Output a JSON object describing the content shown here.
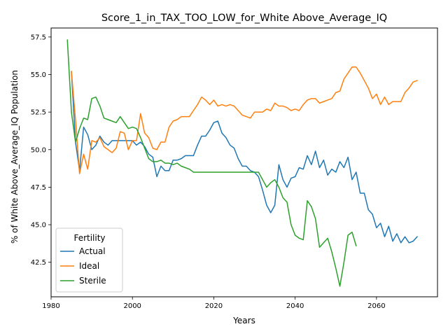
{
  "chart_data": {
    "type": "line",
    "title": "Score_1_in_TAX_TOO_LOW_for_White Above_Average_IQ",
    "xlabel": "Years",
    "ylabel": "% of White Above_Average_IQ Population",
    "xlim": [
      1980,
      2075
    ],
    "ylim": [
      40.2,
      58.1
    ],
    "x_ticks": [
      1980,
      2000,
      2020,
      2040,
      2060
    ],
    "y_ticks": [
      42.5,
      45.0,
      47.5,
      50.0,
      52.5,
      55.0,
      57.5
    ],
    "x_tick_labels": [
      "1980",
      "2000",
      "2020",
      "2040",
      "2060"
    ],
    "y_tick_labels": [
      "42.5",
      "45.0",
      "47.5",
      "50.0",
      "52.5",
      "55.0",
      "57.5"
    ],
    "grid": false,
    "legend": {
      "title": "Fertility",
      "placement": "lower-left",
      "entries": [
        "Actual",
        "Ideal",
        "Sterile"
      ]
    },
    "series": [
      {
        "name": "Actual",
        "color": "#1f77b4",
        "points": [
          [
            1985,
            55.2
          ],
          [
            1986,
            50.5
          ],
          [
            1987,
            48.6
          ],
          [
            1988,
            51.5
          ],
          [
            1989,
            51.0
          ],
          [
            1990,
            50.0
          ],
          [
            1991,
            50.3
          ],
          [
            1992,
            50.9
          ],
          [
            1993,
            50.5
          ],
          [
            1994,
            50.3
          ],
          [
            1995,
            50.6
          ],
          [
            1996,
            50.6
          ],
          [
            1997,
            50.6
          ],
          [
            1998,
            50.6
          ],
          [
            1999,
            50.6
          ],
          [
            2000,
            50.6
          ],
          [
            2001,
            50.3
          ],
          [
            2002,
            50.5
          ],
          [
            2003,
            50.2
          ],
          [
            2004,
            49.7
          ],
          [
            2005,
            49.5
          ],
          [
            2006,
            48.2
          ],
          [
            2007,
            48.9
          ],
          [
            2008,
            48.6
          ],
          [
            2009,
            48.6
          ],
          [
            2010,
            49.3
          ],
          [
            2011,
            49.3
          ],
          [
            2012,
            49.4
          ],
          [
            2013,
            49.6
          ],
          [
            2014,
            49.6
          ],
          [
            2015,
            49.6
          ],
          [
            2016,
            50.3
          ],
          [
            2017,
            50.9
          ],
          [
            2018,
            50.9
          ],
          [
            2019,
            51.3
          ],
          [
            2020,
            51.8
          ],
          [
            2021,
            51.9
          ],
          [
            2022,
            51.1
          ],
          [
            2023,
            50.8
          ],
          [
            2024,
            50.3
          ],
          [
            2025,
            50.1
          ],
          [
            2026,
            49.4
          ],
          [
            2027,
            48.9
          ],
          [
            2028,
            48.9
          ],
          [
            2029,
            48.6
          ],
          [
            2030,
            48.5
          ],
          [
            2031,
            48.2
          ],
          [
            2032,
            47.3
          ],
          [
            2033,
            46.3
          ],
          [
            2034,
            45.8
          ],
          [
            2035,
            46.3
          ],
          [
            2036,
            49.0
          ],
          [
            2037,
            48.0
          ],
          [
            2038,
            47.5
          ],
          [
            2039,
            48.1
          ],
          [
            2040,
            48.2
          ],
          [
            2041,
            48.8
          ],
          [
            2042,
            48.7
          ],
          [
            2043,
            49.6
          ],
          [
            2044,
            49.0
          ],
          [
            2045,
            49.9
          ],
          [
            2046,
            48.8
          ],
          [
            2047,
            49.3
          ],
          [
            2048,
            48.3
          ],
          [
            2049,
            48.7
          ],
          [
            2050,
            48.5
          ],
          [
            2051,
            49.2
          ],
          [
            2052,
            48.8
          ],
          [
            2053,
            49.5
          ],
          [
            2054,
            48.0
          ],
          [
            2055,
            48.5
          ],
          [
            2056,
            47.1
          ],
          [
            2057,
            47.1
          ],
          [
            2058,
            46.0
          ],
          [
            2059,
            45.7
          ],
          [
            2060,
            44.8
          ],
          [
            2061,
            45.1
          ],
          [
            2062,
            44.2
          ],
          [
            2063,
            44.9
          ],
          [
            2064,
            43.9
          ],
          [
            2065,
            44.4
          ],
          [
            2066,
            43.8
          ],
          [
            2067,
            44.2
          ],
          [
            2068,
            43.8
          ],
          [
            2069,
            43.9
          ],
          [
            2070,
            44.2
          ]
        ]
      },
      {
        "name": "Ideal",
        "color": "#ff7f0e",
        "points": [
          [
            1985,
            55.2
          ],
          [
            1986,
            52.0
          ],
          [
            1987,
            48.4
          ],
          [
            1988,
            49.7
          ],
          [
            1989,
            48.7
          ],
          [
            1990,
            50.6
          ],
          [
            1991,
            50.5
          ],
          [
            1992,
            50.8
          ],
          [
            1993,
            50.2
          ],
          [
            1994,
            50.0
          ],
          [
            1995,
            49.8
          ],
          [
            1996,
            50.1
          ],
          [
            1997,
            51.2
          ],
          [
            1998,
            51.1
          ],
          [
            1999,
            50.0
          ],
          [
            2000,
            50.6
          ],
          [
            2001,
            50.6
          ],
          [
            2002,
            52.4
          ],
          [
            2003,
            51.1
          ],
          [
            2004,
            50.8
          ],
          [
            2005,
            50.1
          ],
          [
            2006,
            50.0
          ],
          [
            2007,
            50.5
          ],
          [
            2008,
            50.5
          ],
          [
            2009,
            51.5
          ],
          [
            2010,
            51.9
          ],
          [
            2011,
            52.0
          ],
          [
            2012,
            52.2
          ],
          [
            2013,
            52.2
          ],
          [
            2014,
            52.2
          ],
          [
            2015,
            52.6
          ],
          [
            2016,
            53.0
          ],
          [
            2017,
            53.5
          ],
          [
            2018,
            53.3
          ],
          [
            2019,
            53.0
          ],
          [
            2020,
            53.3
          ],
          [
            2021,
            52.9
          ],
          [
            2022,
            53.0
          ],
          [
            2023,
            52.9
          ],
          [
            2024,
            53.0
          ],
          [
            2025,
            52.9
          ],
          [
            2026,
            52.6
          ],
          [
            2027,
            52.3
          ],
          [
            2028,
            52.2
          ],
          [
            2029,
            52.1
          ],
          [
            2030,
            52.5
          ],
          [
            2031,
            52.5
          ],
          [
            2032,
            52.5
          ],
          [
            2033,
            52.7
          ],
          [
            2034,
            52.6
          ],
          [
            2035,
            53.1
          ],
          [
            2036,
            52.9
          ],
          [
            2037,
            52.9
          ],
          [
            2038,
            52.8
          ],
          [
            2039,
            52.6
          ],
          [
            2040,
            52.7
          ],
          [
            2041,
            52.6
          ],
          [
            2042,
            53.0
          ],
          [
            2043,
            53.3
          ],
          [
            2044,
            53.4
          ],
          [
            2045,
            53.4
          ],
          [
            2046,
            53.1
          ],
          [
            2047,
            53.2
          ],
          [
            2048,
            53.3
          ],
          [
            2049,
            53.4
          ],
          [
            2050,
            53.8
          ],
          [
            2051,
            53.9
          ],
          [
            2052,
            54.7
          ],
          [
            2053,
            55.1
          ],
          [
            2054,
            55.5
          ],
          [
            2055,
            55.5
          ],
          [
            2056,
            55.1
          ],
          [
            2057,
            54.6
          ],
          [
            2058,
            54.1
          ],
          [
            2059,
            53.4
          ],
          [
            2060,
            53.7
          ],
          [
            2061,
            53.0
          ],
          [
            2062,
            53.5
          ],
          [
            2063,
            53.0
          ],
          [
            2064,
            53.2
          ],
          [
            2065,
            53.2
          ],
          [
            2066,
            53.2
          ],
          [
            2067,
            53.8
          ],
          [
            2068,
            54.1
          ],
          [
            2069,
            54.5
          ],
          [
            2070,
            54.6
          ]
        ]
      },
      {
        "name": "Sterile",
        "color": "#2ca02c",
        "points": [
          [
            1984,
            57.3
          ],
          [
            1985,
            52.5
          ],
          [
            1986,
            50.5
          ],
          [
            1987,
            51.4
          ],
          [
            1988,
            52.1
          ],
          [
            1989,
            52.0
          ],
          [
            1990,
            53.4
          ],
          [
            1991,
            53.5
          ],
          [
            1992,
            52.9
          ],
          [
            1993,
            52.1
          ],
          [
            1994,
            52.0
          ],
          [
            1995,
            51.9
          ],
          [
            1996,
            51.8
          ],
          [
            1997,
            52.2
          ],
          [
            1998,
            51.8
          ],
          [
            1999,
            51.4
          ],
          [
            2000,
            51.5
          ],
          [
            2001,
            51.4
          ],
          [
            2002,
            50.8
          ],
          [
            2003,
            50.1
          ],
          [
            2004,
            49.4
          ],
          [
            2005,
            49.2
          ],
          [
            2006,
            49.2
          ],
          [
            2007,
            49.3
          ],
          [
            2008,
            49.1
          ],
          [
            2009,
            49.1
          ],
          [
            2010,
            49.0
          ],
          [
            2011,
            49.1
          ],
          [
            2012,
            48.9
          ],
          [
            2013,
            48.8
          ],
          [
            2014,
            48.7
          ],
          [
            2015,
            48.5
          ],
          [
            2016,
            48.5
          ],
          [
            2017,
            48.5
          ],
          [
            2018,
            48.5
          ],
          [
            2019,
            48.5
          ],
          [
            2020,
            48.5
          ],
          [
            2021,
            48.5
          ],
          [
            2022,
            48.5
          ],
          [
            2023,
            48.5
          ],
          [
            2024,
            48.5
          ],
          [
            2025,
            48.5
          ],
          [
            2026,
            48.5
          ],
          [
            2027,
            48.5
          ],
          [
            2028,
            48.5
          ],
          [
            2029,
            48.5
          ],
          [
            2030,
            48.5
          ],
          [
            2031,
            48.5
          ],
          [
            2032,
            48.0
          ],
          [
            2033,
            47.5
          ],
          [
            2034,
            47.8
          ],
          [
            2035,
            48.0
          ],
          [
            2036,
            47.5
          ],
          [
            2037,
            46.8
          ],
          [
            2038,
            46.5
          ],
          [
            2039,
            45.0
          ],
          [
            2040,
            44.3
          ],
          [
            2041,
            44.1
          ],
          [
            2042,
            44.0
          ],
          [
            2043,
            46.6
          ],
          [
            2044,
            46.2
          ],
          [
            2045,
            45.4
          ],
          [
            2046,
            43.5
          ],
          [
            2047,
            43.8
          ],
          [
            2048,
            44.1
          ],
          [
            2049,
            43.2
          ],
          [
            2050,
            42.1
          ],
          [
            2051,
            40.9
          ],
          [
            2052,
            42.5
          ],
          [
            2053,
            44.3
          ],
          [
            2054,
            44.5
          ],
          [
            2055,
            43.6
          ]
        ]
      }
    ]
  }
}
